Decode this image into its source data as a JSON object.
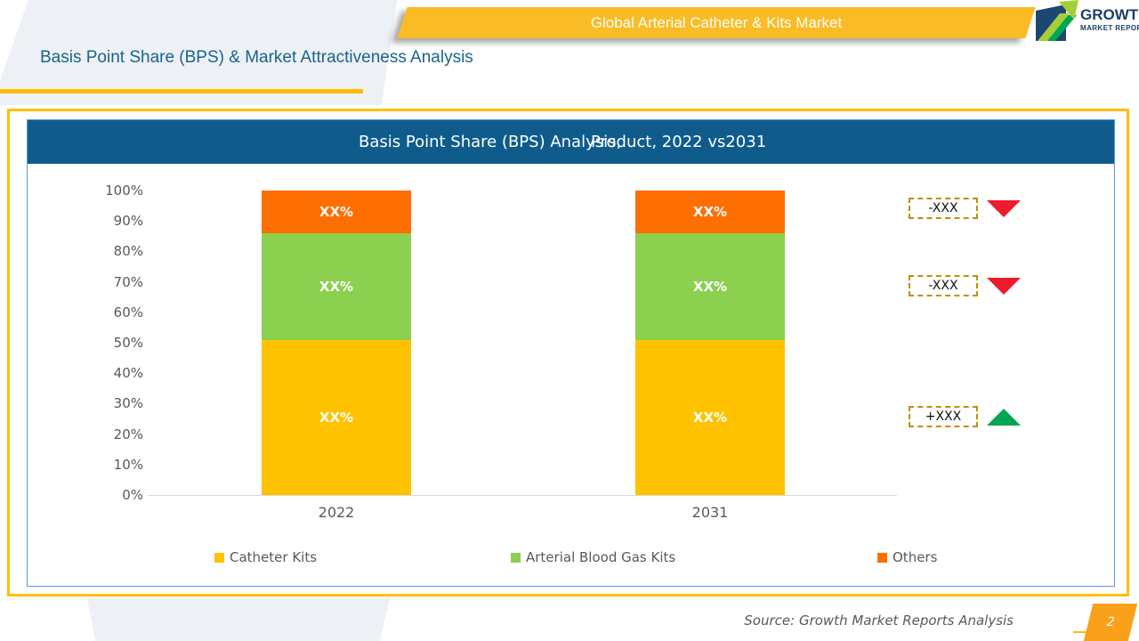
{
  "banner": {
    "title": "Global Arterial Catheter & Kits Market"
  },
  "logo": {
    "name": "GROWTH",
    "tagline": "MARKET REPORTS"
  },
  "page": {
    "subtitle": "Basis Point Share (BPS) & Market Attractiveness Analysis",
    "source": "Source: Growth Market Reports Analysis",
    "page_number": "2"
  },
  "chart": {
    "title_left": "Basis Point Share (BPS) Analysis,",
    "title_right": "Product, 2022 vs2031"
  },
  "colors": {
    "banner": "#F9BC26",
    "chart_title_bar": "#0F5C8C",
    "outer_frame": "#FFC000",
    "inner_frame": "#5B9BD5",
    "indicator_border": "#BF9000",
    "triangle_down": "#EC1C2E",
    "triangle_up": "#00A651"
  },
  "chart_data": {
    "type": "bar",
    "stacked": true,
    "title": "Basis Point Share (BPS) Analysis, Product, 2022 vs2031",
    "categories": [
      "2022",
      "2031"
    ],
    "series": [
      {
        "name": "Catheter Kits",
        "color": "#FFC200",
        "values": [
          51,
          51
        ],
        "data_label": "XX%"
      },
      {
        "name": "Arterial Blood Gas Kits",
        "color": "#8CD050",
        "values": [
          35,
          35
        ],
        "data_label": "XX%"
      },
      {
        "name": "Others",
        "color": "#FF6E00",
        "values": [
          14,
          14
        ],
        "data_label": "XX%"
      }
    ],
    "y_axis": {
      "min": 0,
      "max": 100,
      "ticks": [
        "0%",
        "10%",
        "20%",
        "30%",
        "40%",
        "50%",
        "60%",
        "70%",
        "80%",
        "90%",
        "100%"
      ]
    },
    "grid": false,
    "legend_position": "bottom",
    "indicators": [
      {
        "label": "-XXX",
        "trend": "down",
        "color": "#EC1C2E",
        "aligned_series": "Others"
      },
      {
        "label": "-XXX",
        "trend": "down",
        "color": "#EC1C2E",
        "aligned_series": "Arterial Blood Gas Kits"
      },
      {
        "label": "+XXX",
        "trend": "up",
        "color": "#00A651",
        "aligned_series": "Catheter Kits"
      }
    ]
  }
}
